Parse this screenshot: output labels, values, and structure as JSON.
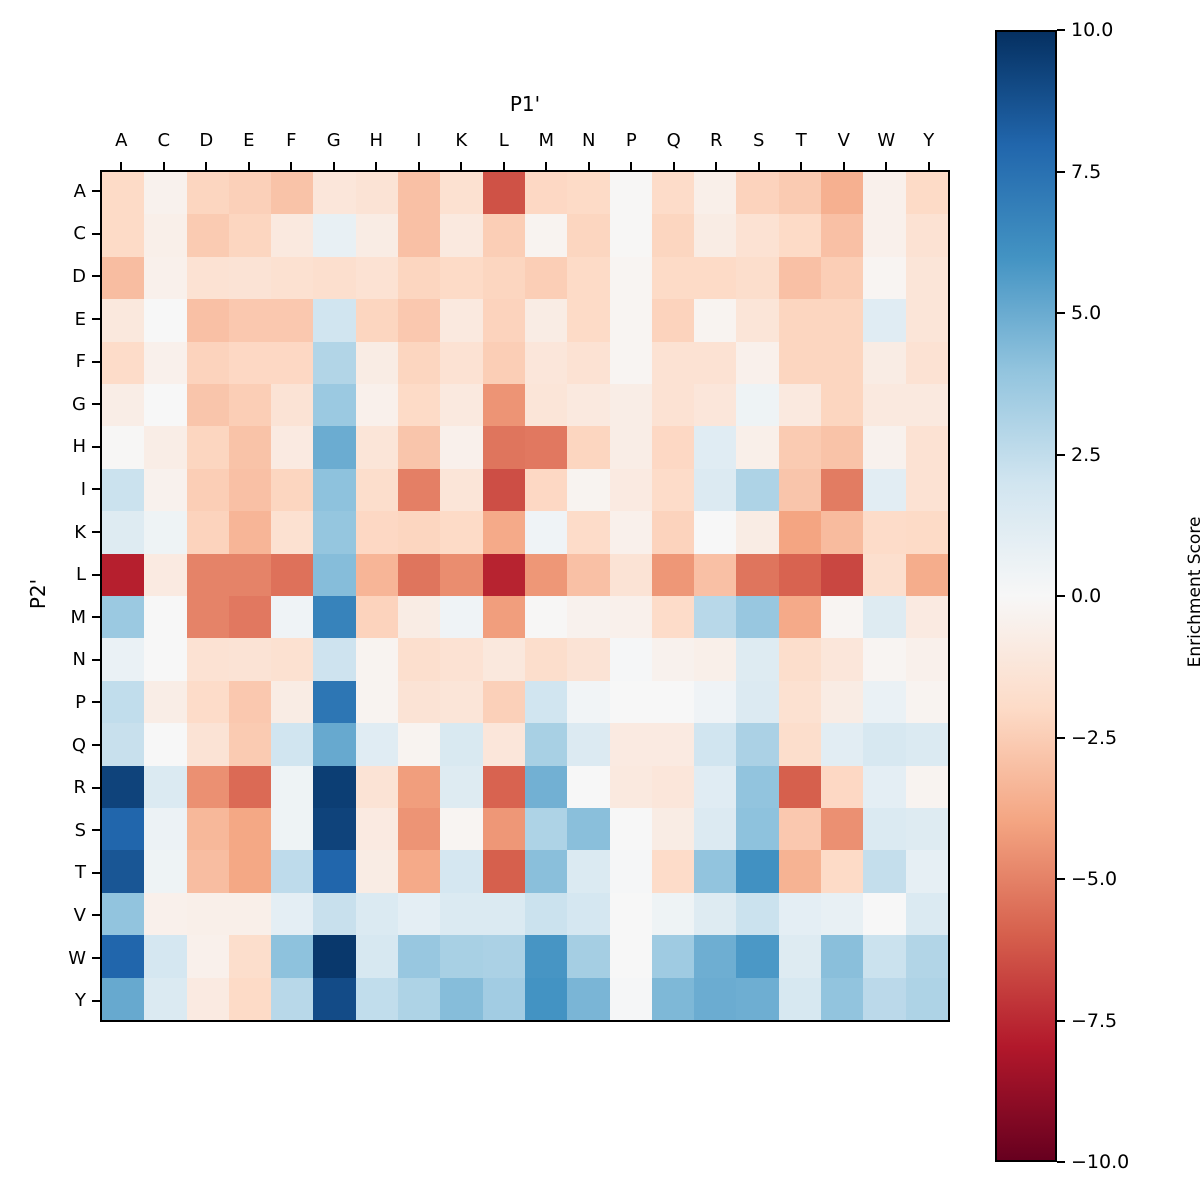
{
  "figure": {
    "background": "#ffffff"
  },
  "x_axis": {
    "title": "P1'"
  },
  "y_axis": {
    "title": "P2'"
  },
  "colorbar": {
    "label": "Enrichment Score",
    "tick_labels": [
      "10.0",
      "7.5",
      "5.0",
      "2.5",
      "0.0",
      "−2.5",
      "−5.0",
      "−7.5",
      "−10.0"
    ],
    "tick_values": [
      10,
      7.5,
      5,
      2.5,
      0,
      -2.5,
      -5,
      -7.5,
      -10
    ],
    "vmin": -10,
    "vmax": 10,
    "colormap": "RdBu",
    "stops": [
      "#67001f",
      "#b2182b",
      "#d6604d",
      "#f4a582",
      "#fddbc7",
      "#f7f7f7",
      "#d1e5f0",
      "#92c4de",
      "#4393c3",
      "#2166ac",
      "#053061"
    ]
  },
  "chart_data": {
    "type": "heatmap",
    "xlabel": "P1'",
    "ylabel": "P2'",
    "colorbar_label": "Enrichment Score",
    "vmin": -10,
    "vmax": 10,
    "x_categories": [
      "A",
      "C",
      "D",
      "E",
      "F",
      "G",
      "H",
      "I",
      "K",
      "L",
      "M",
      "N",
      "P",
      "Q",
      "R",
      "S",
      "T",
      "V",
      "W",
      "Y"
    ],
    "y_categories": [
      "A",
      "C",
      "D",
      "E",
      "F",
      "G",
      "H",
      "I",
      "K",
      "L",
      "M",
      "N",
      "P",
      "Q",
      "R",
      "S",
      "T",
      "V",
      "W",
      "Y"
    ],
    "values": [
      [
        -2.0,
        -0.4,
        -2.2,
        -2.4,
        -2.9,
        -1.2,
        -1.4,
        -3.0,
        -1.6,
        -6.4,
        -2.1,
        -2.0,
        -0.1,
        -1.9,
        -0.6,
        -2.3,
        -2.6,
        -3.6,
        -0.5,
        -2.0
      ],
      [
        -2.0,
        -0.6,
        -2.6,
        -2.2,
        -1.0,
        0.8,
        -0.8,
        -3.0,
        -1.0,
        -2.5,
        -0.3,
        -2.2,
        -0.1,
        -2.2,
        -0.8,
        -1.5,
        -2.0,
        -3.0,
        -0.5,
        -1.5
      ],
      [
        -3.1,
        -0.5,
        -1.5,
        -1.4,
        -1.6,
        -1.7,
        -1.5,
        -2.2,
        -2.0,
        -2.2,
        -2.5,
        -2.0,
        -0.2,
        -2.0,
        -2.0,
        -1.8,
        -3.0,
        -2.5,
        -0.2,
        -1.3
      ],
      [
        -1.1,
        0.0,
        -3.0,
        -2.7,
        -2.7,
        2.0,
        -2.2,
        -2.7,
        -1.0,
        -2.3,
        -0.8,
        -2.0,
        -0.2,
        -2.3,
        -0.3,
        -1.3,
        -2.2,
        -2.2,
        1.2,
        -1.3
      ],
      [
        -1.9,
        -0.5,
        -2.3,
        -2.1,
        -2.1,
        3.0,
        -0.8,
        -2.2,
        -1.5,
        -2.5,
        -1.2,
        -1.5,
        -0.2,
        -1.5,
        -1.5,
        -0.5,
        -2.2,
        -2.2,
        -0.8,
        -1.5
      ],
      [
        -0.7,
        0.0,
        -2.8,
        -2.5,
        -1.4,
        3.7,
        -0.5,
        -2.0,
        -1.0,
        -4.5,
        -1.3,
        -1.0,
        -0.7,
        -1.5,
        -1.2,
        0.5,
        -1.0,
        -2.2,
        -1.0,
        -1.0
      ],
      [
        -0.1,
        -0.7,
        -2.2,
        -2.9,
        -0.9,
        5.0,
        -1.3,
        -2.8,
        -0.5,
        -5.4,
        -5.3,
        -2.2,
        -0.7,
        -2.1,
        1.2,
        -0.6,
        -2.6,
        -2.9,
        -0.4,
        -1.5
      ],
      [
        2.2,
        -0.4,
        -2.5,
        -3.0,
        -2.2,
        4.1,
        -1.8,
        -5.1,
        -1.3,
        -6.5,
        -2.1,
        -0.3,
        -0.9,
        -1.9,
        1.4,
        3.1,
        -2.8,
        -5.2,
        1.1,
        -1.5
      ],
      [
        1.3,
        0.5,
        -2.3,
        -3.4,
        -1.6,
        3.9,
        -2.1,
        -2.2,
        -2.0,
        -3.8,
        0.4,
        -1.9,
        -0.5,
        -2.3,
        0.0,
        -0.8,
        -4.0,
        -3.2,
        -1.9,
        -2.0
      ],
      [
        -7.8,
        -0.9,
        -5.0,
        -5.0,
        -5.5,
        4.3,
        -3.4,
        -5.4,
        -4.7,
        -7.7,
        -4.4,
        -3.0,
        -1.4,
        -4.4,
        -3.0,
        -5.4,
        -5.9,
        -6.7,
        -1.7,
        -3.7
      ],
      [
        3.7,
        0.0,
        -5.0,
        -5.3,
        0.4,
        6.7,
        -2.3,
        -0.8,
        0.4,
        -4.2,
        -0.1,
        -0.4,
        -0.5,
        -1.9,
        2.8,
        3.8,
        -3.8,
        -0.2,
        1.3,
        -0.9
      ],
      [
        0.7,
        0.0,
        -1.5,
        -1.4,
        -1.6,
        2.1,
        -0.3,
        -1.7,
        -1.5,
        -1.1,
        -1.8,
        -1.4,
        0.1,
        -0.4,
        -0.6,
        1.3,
        -1.8,
        -1.2,
        -0.2,
        -0.5
      ],
      [
        2.5,
        -0.7,
        -1.9,
        -2.7,
        -0.8,
        7.3,
        -0.3,
        -1.4,
        -1.3,
        -2.4,
        2.0,
        0.3,
        0.0,
        0.0,
        0.4,
        1.4,
        -1.6,
        -0.8,
        0.7,
        -0.3
      ],
      [
        2.3,
        0.0,
        -1.4,
        -2.6,
        2.0,
        5.1,
        1.2,
        -0.3,
        1.6,
        -1.2,
        3.3,
        1.4,
        -0.9,
        -0.9,
        2.0,
        3.2,
        -1.8,
        1.1,
        1.7,
        1.5
      ],
      [
        9.3,
        1.5,
        -4.6,
        -5.7,
        0.5,
        9.5,
        -1.4,
        -4.2,
        1.3,
        -5.9,
        4.8,
        0.0,
        -1.0,
        -1.2,
        1.2,
        4.0,
        -6.0,
        -2.1,
        1.0,
        -0.3
      ],
      [
        8.0,
        0.6,
        -3.3,
        -3.9,
        0.5,
        9.3,
        -0.9,
        -4.5,
        -0.2,
        -4.4,
        3.1,
        4.2,
        0.0,
        -0.8,
        1.4,
        4.1,
        -2.7,
        -4.6,
        1.5,
        1.3
      ],
      [
        8.6,
        0.5,
        -3.1,
        -3.9,
        2.6,
        8.0,
        -0.8,
        -3.8,
        1.8,
        -6.0,
        4.2,
        1.5,
        0.1,
        -1.9,
        4.0,
        6.1,
        -3.5,
        -2.0,
        2.4,
        0.9
      ],
      [
        4.0,
        -0.5,
        -0.6,
        -0.6,
        1.0,
        2.3,
        1.5,
        1.0,
        1.5,
        1.5,
        2.2,
        1.8,
        0.0,
        0.5,
        1.3,
        2.2,
        1.0,
        0.8,
        0.0,
        1.5
      ],
      [
        8.0,
        1.8,
        -0.5,
        -1.8,
        4.1,
        9.7,
        1.7,
        3.8,
        3.3,
        3.2,
        5.9,
        3.4,
        0.0,
        3.6,
        4.9,
        5.8,
        1.3,
        4.2,
        2.2,
        3.0
      ],
      [
        5.1,
        1.5,
        -0.9,
        -2.0,
        2.8,
        9.0,
        2.5,
        3.1,
        4.3,
        3.5,
        6.0,
        4.6,
        0.1,
        4.5,
        5.0,
        4.9,
        1.7,
        4.0,
        2.7,
        3.1
      ]
    ]
  }
}
